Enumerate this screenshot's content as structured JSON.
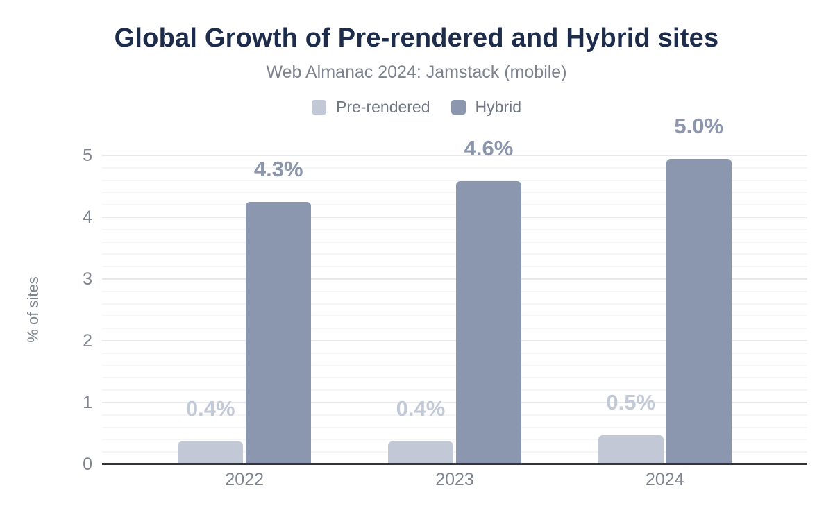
{
  "header": {
    "title": "Global Growth of Pre-rendered and Hybrid sites",
    "subtitle": "Web Almanac 2024: Jamstack (mobile)"
  },
  "colors": {
    "title_text": "#1e2c4c",
    "subtitle_text": "#7c838e",
    "axis_text": "#7f858e",
    "legend_text": "#6f7684",
    "baseline": "#313438",
    "gridline_major": "#e8e9ec",
    "gridline_minor": "#f4f5f7",
    "background": "#ffffff"
  },
  "chart_data": {
    "type": "bar",
    "title": "Global Growth of Pre-rendered and Hybrid sites",
    "subtitle": "Web Almanac 2024: Jamstack (mobile)",
    "categories": [
      "2022",
      "2023",
      "2024"
    ],
    "series": [
      {
        "name": "Pre-rendered",
        "color": "#c2c8d6",
        "label_color": "#c2c9d7",
        "values": [
          0.4,
          0.4,
          0.5
        ],
        "labels": [
          "0.4%",
          "0.4%",
          "0.5%"
        ],
        "precise_values": [
          0.37,
          0.37,
          0.47
        ]
      },
      {
        "name": "Hybrid",
        "color": "#8b97ae",
        "label_color": "#8b96ad",
        "values": [
          4.3,
          4.6,
          5.0
        ],
        "labels": [
          "4.3%",
          "4.6%",
          "5.0%"
        ],
        "precise_values": [
          4.25,
          4.59,
          4.94
        ]
      }
    ],
    "xlabel": "",
    "ylabel": "% of sites",
    "ylim": [
      0,
      5
    ],
    "yticks": [
      0,
      1,
      2,
      3,
      4,
      5
    ],
    "minor_grid_step": 0.2,
    "grid": true,
    "legend_position": "top"
  }
}
